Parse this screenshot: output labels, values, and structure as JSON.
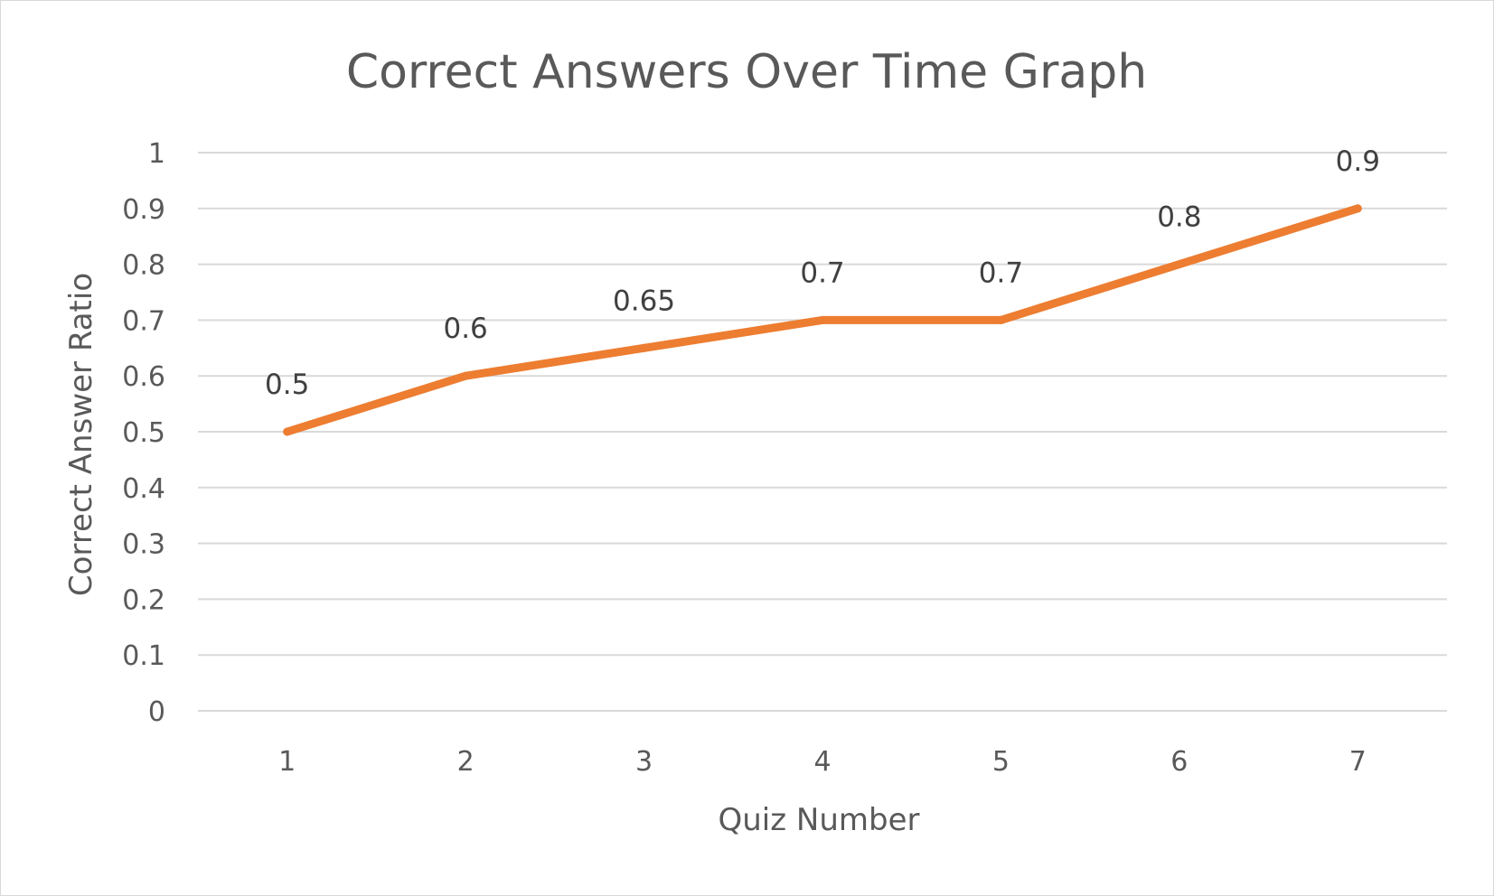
{
  "chart_data": {
    "type": "line",
    "title": "Correct Answers Over Time Graph",
    "xlabel": "Quiz Number",
    "ylabel": "Correct Answer Ratio",
    "categories": [
      "1",
      "2",
      "3",
      "4",
      "5",
      "6",
      "7"
    ],
    "series": [
      {
        "values": [
          0.5,
          0.6,
          0.65,
          0.7,
          0.7,
          0.8,
          0.9
        ],
        "data_labels": [
          "0.5",
          "0.6",
          "0.65",
          "0.7",
          "0.7",
          "0.8",
          "0.9"
        ],
        "color": "#ED7D31"
      }
    ],
    "ylim": [
      0,
      1
    ],
    "y_ticks": [
      "0",
      "0.1",
      "0.2",
      "0.3",
      "0.4",
      "0.5",
      "0.6",
      "0.7",
      "0.8",
      "0.9",
      "1"
    ],
    "grid": true,
    "legend": "none"
  }
}
